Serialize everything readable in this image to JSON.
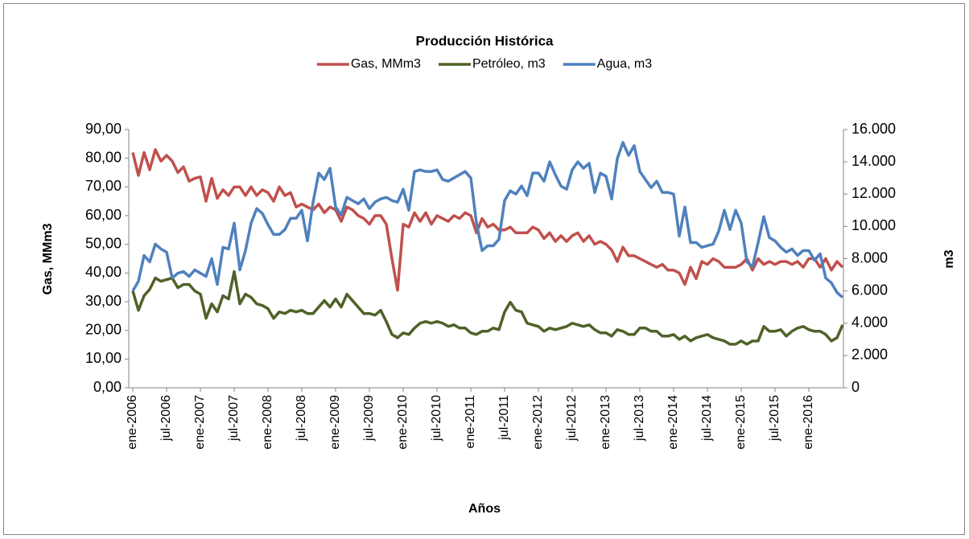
{
  "chart_data": {
    "type": "line",
    "title": "Producción Histórica",
    "x_label": "Años",
    "y_label": "Gas, MMm3",
    "y2_label": "m3",
    "categories": [
      "ene-2006",
      null,
      null,
      null,
      null,
      null,
      "jul-2006",
      null,
      null,
      null,
      null,
      null,
      "ene-2007",
      null,
      null,
      null,
      null,
      null,
      "jul-2007",
      null,
      null,
      null,
      null,
      null,
      "ene-2008",
      null,
      null,
      null,
      null,
      null,
      "jul-2008",
      null,
      null,
      null,
      null,
      null,
      "ene-2009",
      null,
      null,
      null,
      null,
      null,
      "jul-2009",
      null,
      null,
      null,
      null,
      null,
      "ene-2010",
      null,
      null,
      null,
      null,
      null,
      "jul-2010",
      null,
      null,
      null,
      null,
      null,
      "ene-2011",
      null,
      null,
      null,
      null,
      null,
      "jul-2011",
      null,
      null,
      null,
      null,
      null,
      "ene-2012",
      null,
      null,
      null,
      null,
      null,
      "jul-2012",
      null,
      null,
      null,
      null,
      null,
      "ene-2013",
      null,
      null,
      null,
      null,
      null,
      "jul-2013",
      null,
      null,
      null,
      null,
      null,
      "ene-2014",
      null,
      null,
      null,
      null,
      null,
      "jul-2014",
      null,
      null,
      null,
      null,
      null,
      "ene-2015",
      null,
      null,
      null,
      null,
      null,
      "jul-2015",
      null,
      null,
      null,
      null,
      null,
      "ene-2016",
      null,
      null,
      null,
      null,
      null,
      null
    ],
    "series": [
      {
        "name": "Gas, MMm3",
        "color": "#c0504d",
        "axis": "y",
        "values": [
          82,
          74,
          82,
          76,
          83,
          79,
          81,
          79,
          75,
          77,
          72,
          73,
          73.5,
          65,
          73,
          66,
          69,
          67,
          70,
          70,
          67,
          70,
          67,
          69,
          68,
          65,
          70,
          67,
          68,
          63,
          64,
          63,
          62,
          64,
          61,
          63,
          62,
          58,
          63,
          62,
          60,
          59,
          57,
          60,
          60,
          57,
          45,
          34,
          57,
          56,
          61,
          58,
          61,
          57,
          60,
          59,
          58,
          60,
          59,
          61,
          60,
          54,
          59,
          56,
          57,
          55,
          55,
          56,
          54,
          54,
          54,
          56,
          55,
          52,
          54,
          51,
          53,
          51,
          53,
          54,
          51,
          53,
          50,
          51,
          50,
          48,
          44,
          49,
          46,
          46,
          45,
          44,
          43,
          42,
          43,
          41,
          41,
          40,
          36,
          42,
          38,
          44,
          43,
          45,
          44,
          42,
          42,
          42,
          43,
          45,
          41,
          45,
          43,
          44,
          43,
          44,
          44,
          43,
          44,
          42,
          45,
          45,
          42,
          45,
          41,
          44,
          42
        ]
      },
      {
        "name": "Petróleo, m3",
        "color": "#4f6228",
        "axis": "y2",
        "values": [
          6000,
          4800,
          5700,
          6100,
          6800,
          6600,
          6700,
          6800,
          6200,
          6400,
          6400,
          6000,
          5800,
          4300,
          5200,
          4700,
          5700,
          5500,
          7200,
          5200,
          5800,
          5600,
          5200,
          5100,
          4900,
          4300,
          4700,
          4600,
          4800,
          4700,
          4800,
          4600,
          4600,
          5000,
          5400,
          5000,
          5500,
          5000,
          5800,
          5400,
          5000,
          4600,
          4600,
          4500,
          4800,
          4100,
          3300,
          3100,
          3400,
          3300,
          3700,
          4000,
          4100,
          4000,
          4100,
          4000,
          3800,
          3900,
          3700,
          3700,
          3400,
          3300,
          3500,
          3500,
          3700,
          3600,
          4700,
          5300,
          4800,
          4700,
          4000,
          3900,
          3800,
          3500,
          3700,
          3600,
          3700,
          3800,
          4000,
          3900,
          3800,
          3900,
          3600,
          3400,
          3400,
          3200,
          3600,
          3500,
          3300,
          3300,
          3700,
          3700,
          3500,
          3500,
          3200,
          3200,
          3300,
          3000,
          3200,
          2900,
          3100,
          3200,
          3300,
          3100,
          3000,
          2900,
          2700,
          2700,
          2900,
          2700,
          2900,
          2900,
          3800,
          3500,
          3500,
          3600,
          3200,
          3500,
          3700,
          3800,
          3600,
          3500,
          3500,
          3300,
          2900,
          3100,
          3900
        ]
      },
      {
        "name": "Agua, m3",
        "color": "#4f81bd",
        "axis": "y2",
        "values": [
          6000,
          6600,
          8200,
          7800,
          8900,
          8600,
          8400,
          6800,
          7100,
          7200,
          6900,
          7300,
          7100,
          6900,
          8000,
          6400,
          8700,
          8600,
          10200,
          7300,
          8500,
          10200,
          11100,
          10800,
          10100,
          9500,
          9500,
          9800,
          10500,
          10500,
          11000,
          9100,
          11500,
          13300,
          12900,
          13600,
          11200,
          10700,
          11800,
          11600,
          11400,
          11700,
          11100,
          11500,
          11700,
          11800,
          11600,
          11500,
          12300,
          11000,
          13400,
          13500,
          13400,
          13400,
          13500,
          12900,
          12800,
          13000,
          13200,
          13400,
          13000,
          10200,
          8500,
          8800,
          8800,
          9200,
          11600,
          12200,
          12000,
          12500,
          11900,
          13300,
          13300,
          12800,
          14000,
          13200,
          12500,
          12300,
          13500,
          14000,
          13600,
          13900,
          12100,
          13300,
          13100,
          11700,
          14200,
          15200,
          14400,
          15000,
          13400,
          12900,
          12400,
          12800,
          12100,
          12100,
          12000,
          9400,
          11200,
          9000,
          9000,
          8700,
          8800,
          8900,
          9700,
          11000,
          9800,
          11000,
          10200,
          7800,
          7500,
          9000,
          10600,
          9300,
          9100,
          8700,
          8400,
          8600,
          8200,
          8500,
          8500,
          7900,
          8300,
          6800,
          6500,
          5900,
          5600
        ]
      }
    ],
    "ylim": [
      0,
      90
    ],
    "yticks": [
      {
        "value": 0,
        "label": "0,00"
      },
      {
        "value": 10,
        "label": "10,00"
      },
      {
        "value": 20,
        "label": "20,00"
      },
      {
        "value": 30,
        "label": "30,00"
      },
      {
        "value": 40,
        "label": "40,00"
      },
      {
        "value": 50,
        "label": "50,00"
      },
      {
        "value": 60,
        "label": "60,00"
      },
      {
        "value": 70,
        "label": "70,00"
      },
      {
        "value": 80,
        "label": "80,00"
      },
      {
        "value": 90,
        "label": "90,00"
      }
    ],
    "y2lim": [
      0,
      16000
    ],
    "y2ticks": [
      0,
      {
        "value": 2000,
        "label": "2.000"
      },
      {
        "value": 4000,
        "label": "4.000"
      },
      {
        "value": 6000,
        "label": "6.000"
      },
      {
        "value": 8000,
        "label": "8.000"
      },
      {
        "value": 10000,
        "label": "10.000"
      },
      {
        "value": 12000,
        "label": "12.000"
      },
      {
        "value": 14000,
        "label": "14.000"
      },
      {
        "value": 16000,
        "label": "16.000"
      }
    ],
    "grid": false,
    "legend": "top"
  }
}
